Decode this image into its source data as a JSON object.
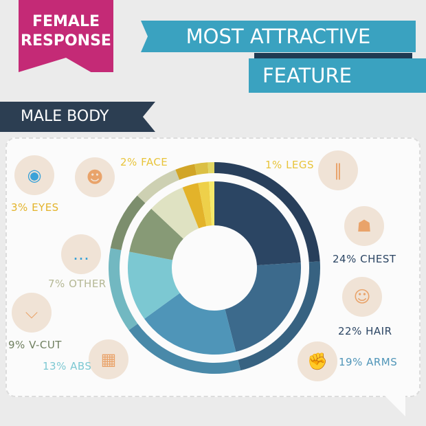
{
  "header": {
    "badge_line1": "FEMALE",
    "badge_line2": "RESPONSE",
    "title_line1": "MOST ATTRACTIVE",
    "title_line2": "FEATURE",
    "section": "MALE BODY"
  },
  "colors": {
    "magenta": "#c42a76",
    "teal": "#3aa2c0",
    "navy": "#2c3e52"
  },
  "chart_data": {
    "type": "pie",
    "donut": true,
    "categories": [
      "CHEST",
      "HAIR",
      "ARMS",
      "ABS",
      "V-CUT",
      "OTHER",
      "EYES",
      "FACE",
      "LEGS"
    ],
    "values": [
      24,
      22,
      19,
      13,
      9,
      7,
      3,
      2,
      1
    ],
    "unit": "%",
    "colors": [
      "#2b4563",
      "#3c6a8c",
      "#4f95b8",
      "#7cc8d2",
      "#879a76",
      "#dfe2c2",
      "#e3b32a",
      "#eed04a",
      "#f5e96a"
    ],
    "labels": [
      "24% CHEST",
      "22% HAIR",
      "19% ARMS",
      "13% ABS",
      "9% V-CUT",
      "7% OTHER",
      "3% EYES",
      "2% FACE",
      "1% LEGS"
    ],
    "icons": [
      "chest-icon",
      "hair-icon",
      "arm-icon",
      "abs-icon",
      "v-cut-icon",
      "chat-bubble-icon",
      "eye-icon",
      "face-icon",
      "legs-icon"
    ]
  }
}
